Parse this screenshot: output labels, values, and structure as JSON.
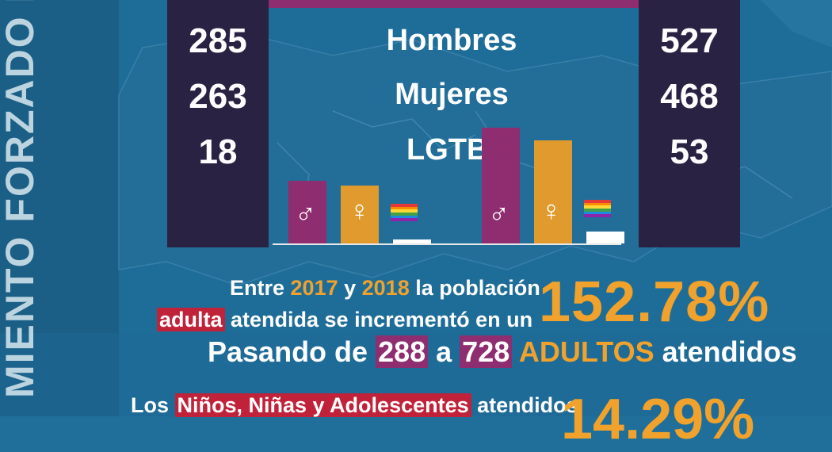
{
  "vertical_title": "MIENTO FORZADO PO",
  "chart_data": {
    "type": "bar",
    "categories": [
      "Hombres",
      "Mujeres",
      "LGTBI"
    ],
    "series": [
      {
        "values": [
          285,
          263,
          18
        ],
        "color": "#8e2d6f"
      },
      {
        "values": [
          527,
          468,
          53
        ],
        "color": "#f0a22c"
      }
    ],
    "icons": [
      "male-symbol",
      "female-symbol",
      "rainbow-flag"
    ],
    "bar_colors": [
      "#8e2d6f",
      "#e09a2e",
      "#ffffff"
    ]
  },
  "left_numbers": [
    "285",
    "263",
    "18"
  ],
  "right_numbers": [
    "527",
    "468",
    "53"
  ],
  "male_symbol": "♂",
  "female_symbol": "♀",
  "stat1": {
    "p1": "Entre ",
    "y1": "2017",
    "p2": " y ",
    "y2": "2018",
    "p3": " la población",
    "adulta": "adulta",
    "p4": " atendida se incrementó en un",
    "percent": "152.78%",
    "p5": "Pasando de ",
    "n1": "288",
    "p6": " a ",
    "n2": "728",
    "adultos": " ADULTOS",
    "p7": " atendidos"
  },
  "stat2": {
    "p1": "Los ",
    "nna": "Niños, Niñas y Adolescentes",
    "p2": " atendidos",
    "percent": "14.29%"
  }
}
